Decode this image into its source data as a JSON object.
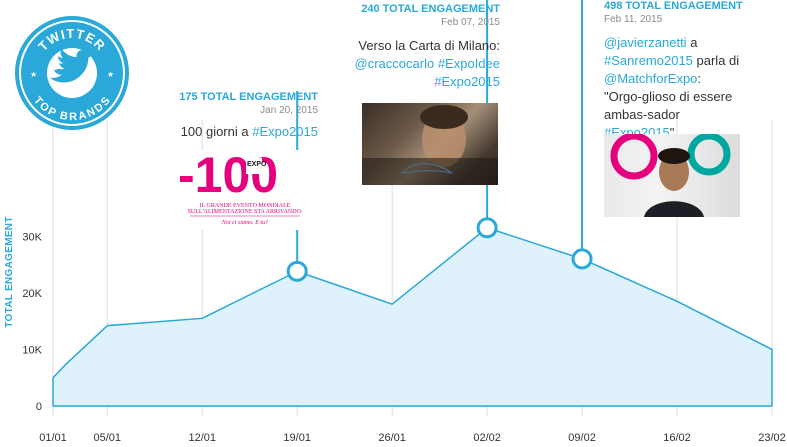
{
  "badge": {
    "line1": "TWITTER",
    "line2": "TOP BRANDS"
  },
  "chart_data": {
    "type": "area",
    "ylabel": "TOTAL ENGAGEMENT",
    "xlabel": "",
    "x_ticks": [
      "01/01",
      "05/01",
      "12/01",
      "19/01",
      "26/01",
      "02/02",
      "09/02",
      "16/02",
      "23/02"
    ],
    "y_ticks": [
      "0",
      "10K",
      "20K",
      "30K"
    ],
    "ylim": [
      0,
      35000
    ],
    "xlim": [
      "01/01",
      "23/02"
    ],
    "points": [
      {
        "x": "01/01",
        "y": 5000
      },
      {
        "x": "02/01",
        "y": 7500
      },
      {
        "x": "05/01",
        "y": 14200
      },
      {
        "x": "12/01",
        "y": 15500
      },
      {
        "x": "19/01",
        "y": 23800
      },
      {
        "x": "26/01",
        "y": 18000
      },
      {
        "x": "02/02",
        "y": 31500
      },
      {
        "x": "09/02",
        "y": 26000
      },
      {
        "x": "16/02",
        "y": 18500
      },
      {
        "x": "23/02",
        "y": 10000
      }
    ],
    "markers": [
      {
        "x": "19/01",
        "y": 23800
      },
      {
        "x": "02/02",
        "y": 31500
      },
      {
        "x": "09/02",
        "y": 26000
      }
    ],
    "grid": "vertical",
    "colors": {
      "line": "#29a8d9",
      "fill": "#dff1fa",
      "text": "#333333",
      "accent": "#29a8d9"
    }
  },
  "callouts": [
    {
      "headline": "175 TOTAL ENGAGEMENT",
      "date": "Jan 20, 2015",
      "parts": [
        {
          "t": "100 giorni a "
        },
        {
          "t": "#Expo2015",
          "hl": true
        }
      ],
      "image": {
        "big_text": "-100",
        "small_text_1": "IL GRANDE EVENTO MONDIALE",
        "small_text_2": "SULL'ALIMENTAZIONE STA ARRIVANDO.",
        "small_text_3": "Noi ci siamo. E tu?"
      }
    },
    {
      "headline": "240 TOTAL ENGAGEMENT",
      "date": "Feb 07, 2015",
      "parts": [
        {
          "t": "Verso la Carta di Milano: "
        },
        {
          "t": "@craccocarlo",
          "hl": true
        },
        {
          "t": " "
        },
        {
          "t": "#ExpoIdee",
          "hl": true
        },
        {
          "t": " "
        },
        {
          "t": "#Expo2015",
          "hl": true
        }
      ]
    },
    {
      "headline": "498 TOTAL ENGAGEMENT",
      "date": "Feb 11, 2015",
      "parts": [
        {
          "t": "@javierzanetti",
          "hl": true
        },
        {
          "t": " a "
        },
        {
          "t": "#Sanremo2015",
          "hl": true
        },
        {
          "t": " parla di "
        },
        {
          "t": "@MatchforExpo",
          "hl": true
        },
        {
          "t": ": \"Orgo-glioso di essere ambas-sador "
        },
        {
          "t": "#Expo2015",
          "hl": true
        },
        {
          "t": "\""
        }
      ]
    }
  ]
}
